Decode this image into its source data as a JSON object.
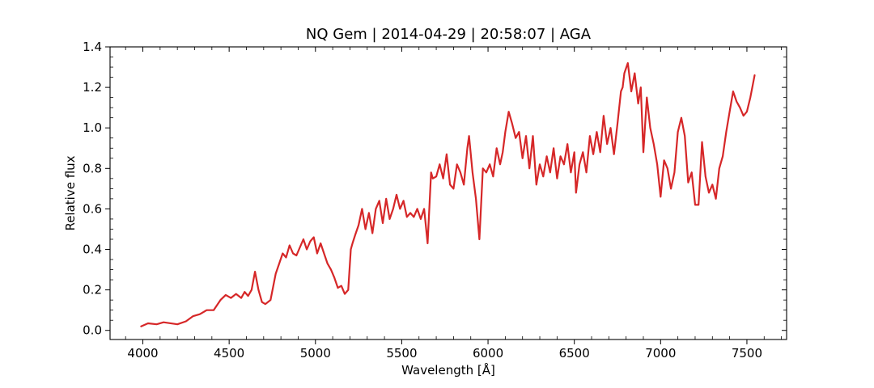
{
  "chart_data": {
    "type": "line",
    "title": "NQ Gem | 2014-04-29 | 20:58:07 | AGA",
    "xlabel": "Wavelength [Å]",
    "ylabel": "Relative flux",
    "xlim": [
      3810,
      7730
    ],
    "ylim": [
      -0.045,
      1.4
    ],
    "xticks": [
      4000,
      4500,
      5000,
      5500,
      6000,
      6500,
      7000,
      7500
    ],
    "yticks": [
      0.0,
      0.2,
      0.4,
      0.6,
      0.8,
      1.0,
      1.2,
      1.4
    ],
    "xtick_labels": [
      "4000",
      "4500",
      "5000",
      "5500",
      "6000",
      "6500",
      "7000",
      "7500"
    ],
    "ytick_labels": [
      "0.0",
      "0.2",
      "0.4",
      "0.6",
      "0.8",
      "1.0",
      "1.2",
      "1.4"
    ],
    "grid": false,
    "series": [
      {
        "color": "#d62728",
        "x": [
          3990,
          4030,
          4080,
          4120,
          4200,
          4250,
          4290,
          4330,
          4370,
          4410,
          4450,
          4480,
          4510,
          4540,
          4570,
          4590,
          4610,
          4630,
          4650,
          4670,
          4690,
          4710,
          4740,
          4770,
          4790,
          4810,
          4830,
          4850,
          4870,
          4890,
          4910,
          4930,
          4950,
          4970,
          4990,
          5010,
          5030,
          5050,
          5070,
          5090,
          5110,
          5130,
          5150,
          5170,
          5190,
          5205,
          5215,
          5230,
          5250,
          5270,
          5290,
          5310,
          5330,
          5350,
          5370,
          5390,
          5410,
          5430,
          5450,
          5470,
          5490,
          5510,
          5530,
          5550,
          5570,
          5590,
          5610,
          5630,
          5650,
          5670,
          5680,
          5700,
          5720,
          5740,
          5760,
          5780,
          5800,
          5820,
          5840,
          5860,
          5880,
          5890,
          5910,
          5930,
          5950,
          5970,
          5990,
          6010,
          6030,
          6050,
          6070,
          6085,
          6100,
          6120,
          6140,
          6160,
          6180,
          6200,
          6220,
          6240,
          6260,
          6280,
          6300,
          6320,
          6340,
          6360,
          6380,
          6400,
          6420,
          6440,
          6460,
          6480,
          6500,
          6510,
          6530,
          6550,
          6570,
          6590,
          6610,
          6630,
          6650,
          6670,
          6690,
          6710,
          6730,
          6750,
          6770,
          6780,
          6790,
          6810,
          6830,
          6850,
          6870,
          6885,
          6900,
          6920,
          6940,
          6960,
          6980,
          7000,
          7020,
          7040,
          7060,
          7080,
          7100,
          7120,
          7140,
          7160,
          7180,
          7200,
          7220,
          7240,
          7260,
          7280,
          7300,
          7320,
          7340,
          7360,
          7380,
          7400,
          7420,
          7440,
          7460,
          7480,
          7500,
          7520,
          7545
        ],
        "y": [
          0.02,
          0.035,
          0.03,
          0.04,
          0.03,
          0.045,
          0.07,
          0.08,
          0.1,
          0.1,
          0.15,
          0.175,
          0.16,
          0.18,
          0.16,
          0.19,
          0.17,
          0.2,
          0.29,
          0.2,
          0.14,
          0.13,
          0.15,
          0.28,
          0.33,
          0.38,
          0.36,
          0.42,
          0.38,
          0.37,
          0.41,
          0.45,
          0.4,
          0.44,
          0.46,
          0.38,
          0.43,
          0.38,
          0.33,
          0.3,
          0.26,
          0.21,
          0.22,
          0.18,
          0.2,
          0.4,
          0.43,
          0.47,
          0.52,
          0.6,
          0.5,
          0.58,
          0.48,
          0.6,
          0.64,
          0.53,
          0.65,
          0.55,
          0.6,
          0.67,
          0.6,
          0.64,
          0.56,
          0.58,
          0.56,
          0.6,
          0.55,
          0.6,
          0.43,
          0.78,
          0.75,
          0.76,
          0.82,
          0.75,
          0.87,
          0.72,
          0.7,
          0.82,
          0.78,
          0.72,
          0.9,
          0.96,
          0.78,
          0.65,
          0.45,
          0.8,
          0.78,
          0.82,
          0.76,
          0.9,
          0.82,
          0.88,
          0.98,
          1.08,
          1.02,
          0.95,
          0.98,
          0.85,
          0.96,
          0.8,
          0.96,
          0.72,
          0.82,
          0.76,
          0.86,
          0.78,
          0.9,
          0.75,
          0.86,
          0.82,
          0.92,
          0.78,
          0.88,
          0.68,
          0.82,
          0.88,
          0.78,
          0.96,
          0.87,
          0.98,
          0.88,
          1.06,
          0.92,
          1.0,
          0.87,
          1.02,
          1.18,
          1.2,
          1.27,
          1.32,
          1.18,
          1.27,
          1.12,
          1.2,
          0.88,
          1.15,
          1.0,
          0.92,
          0.82,
          0.66,
          0.84,
          0.8,
          0.7,
          0.78,
          0.98,
          1.05,
          0.96,
          0.73,
          0.78,
          0.62,
          0.62,
          0.93,
          0.76,
          0.68,
          0.72,
          0.65,
          0.8,
          0.86,
          0.98,
          1.08,
          1.18,
          1.13,
          1.1,
          1.06,
          1.08,
          1.15,
          1.26
        ]
      }
    ]
  }
}
